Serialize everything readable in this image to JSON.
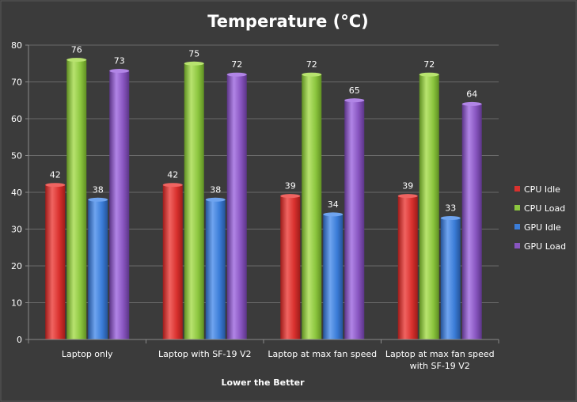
{
  "chart_data": {
    "type": "bar",
    "title": "Temperature (°C)",
    "xlabel": "Lower the Better",
    "ylabel": "",
    "ylim": [
      0,
      80
    ],
    "yticks": [
      0,
      10,
      20,
      30,
      40,
      50,
      60,
      70,
      80
    ],
    "grid": true,
    "legend_position": "right",
    "categories": [
      [
        "Laptop only"
      ],
      [
        "Laptop with SF-19 V2"
      ],
      [
        "Laptop at max fan speed"
      ],
      [
        "Laptop at max fan speed",
        "with SF-19 V2"
      ]
    ],
    "series": [
      {
        "name": "CPU Idle",
        "color": "#d9312e",
        "light": "#f06461",
        "dark": "#9e1c1a",
        "values": [
          42,
          42,
          39,
          39
        ]
      },
      {
        "name": "CPU Load",
        "color": "#8cc63f",
        "light": "#b8e36f",
        "dark": "#5f8f22",
        "values": [
          76,
          75,
          72,
          72
        ]
      },
      {
        "name": "GPU Idle",
        "color": "#3b7dd8",
        "light": "#6fa4ef",
        "dark": "#245399",
        "values": [
          38,
          38,
          34,
          33
        ]
      },
      {
        "name": "GPU Load",
        "color": "#8855c0",
        "light": "#b185e6",
        "dark": "#5c3588",
        "values": [
          73,
          72,
          65,
          64
        ]
      }
    ]
  }
}
